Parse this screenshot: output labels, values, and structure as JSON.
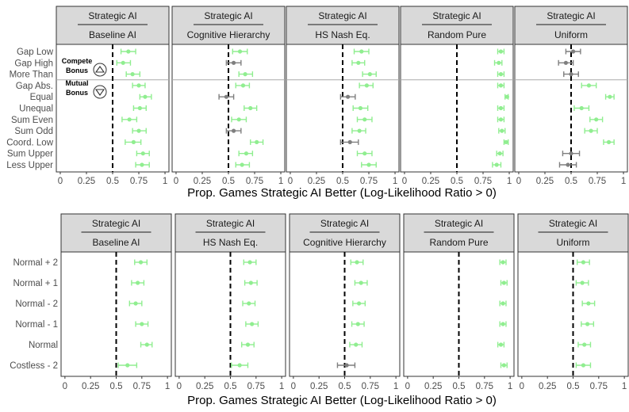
{
  "colors": {
    "significant": "#90ee90",
    "not_significant": "#7f7f7f",
    "reference_line": "#000000",
    "strip": "#d9d9d9"
  },
  "legend": {
    "items": [
      {
        "label": "Compete Bonus",
        "lines": [
          "Compete",
          "Bonus"
        ],
        "icon": "up-triangle-icon"
      },
      {
        "label": "Mutual Bonus",
        "lines": [
          "Mutual",
          "Bonus"
        ],
        "icon": "down-triangle-icon"
      }
    ]
  },
  "chart_data": [
    {
      "type": "scatter",
      "error_bars": true,
      "x_label": "Prop. Games Strategic AI Better (Log-Likelihood Ratio > 0)",
      "x_ticks": [
        "0",
        "0.25",
        "0.5",
        "0.75",
        "1"
      ],
      "xlim": [
        0,
        1
      ],
      "reference_x": 0.5,
      "categories": [
        "Gap Low",
        "Gap High",
        "More Than",
        "Gap Abs.",
        "Equal",
        "Unequal",
        "Sum Even",
        "Sum Odd",
        "Coord. Low",
        "Sum Upper",
        "Less Upper"
      ],
      "group_separator_after": "More Than",
      "facets": [
        {
          "strip_top": "Strategic AI",
          "strip_bottom": "Baseline AI",
          "estimates": [
            0.65,
            0.6,
            0.69,
            0.75,
            0.81,
            0.76,
            0.66,
            0.75,
            0.7,
            0.79,
            0.78
          ],
          "ci_low": [
            0.58,
            0.54,
            0.63,
            0.69,
            0.76,
            0.7,
            0.59,
            0.69,
            0.62,
            0.73,
            0.72
          ],
          "ci_high": [
            0.72,
            0.67,
            0.76,
            0.81,
            0.87,
            0.82,
            0.73,
            0.82,
            0.77,
            0.85,
            0.85
          ],
          "significant": [
            true,
            true,
            true,
            true,
            true,
            true,
            true,
            true,
            true,
            true,
            true
          ]
        },
        {
          "strip_top": "Strategic AI",
          "strip_bottom": "Cognitive Hierarchy",
          "estimates": [
            0.61,
            0.55,
            0.66,
            0.64,
            0.48,
            0.71,
            0.6,
            0.55,
            0.77,
            0.67,
            0.63
          ],
          "ci_low": [
            0.54,
            0.48,
            0.6,
            0.57,
            0.41,
            0.65,
            0.53,
            0.48,
            0.71,
            0.6,
            0.57
          ],
          "ci_high": [
            0.68,
            0.62,
            0.73,
            0.7,
            0.55,
            0.77,
            0.67,
            0.62,
            0.83,
            0.73,
            0.7
          ],
          "significant": [
            true,
            false,
            true,
            true,
            false,
            true,
            true,
            false,
            true,
            true,
            true
          ]
        },
        {
          "strip_top": "Strategic AI",
          "strip_bottom": "HS Nash Eq.",
          "estimates": [
            0.68,
            0.65,
            0.76,
            0.73,
            0.55,
            0.67,
            0.71,
            0.66,
            0.57,
            0.71,
            0.75
          ],
          "ci_low": [
            0.61,
            0.59,
            0.69,
            0.66,
            0.48,
            0.6,
            0.64,
            0.59,
            0.48,
            0.64,
            0.68
          ],
          "ci_high": [
            0.75,
            0.71,
            0.82,
            0.79,
            0.62,
            0.74,
            0.78,
            0.72,
            0.65,
            0.78,
            0.82
          ],
          "significant": [
            true,
            true,
            true,
            true,
            false,
            true,
            true,
            true,
            false,
            true,
            true
          ]
        },
        {
          "strip_top": "Strategic AI",
          "strip_bottom": "Random Pure",
          "estimates": [
            0.92,
            0.9,
            0.92,
            0.92,
            0.98,
            0.92,
            0.92,
            0.93,
            0.97,
            0.91,
            0.88
          ],
          "ci_low": [
            0.89,
            0.86,
            0.89,
            0.89,
            0.96,
            0.89,
            0.89,
            0.9,
            0.95,
            0.88,
            0.84
          ],
          "ci_high": [
            0.95,
            0.93,
            0.95,
            0.95,
            0.99,
            0.95,
            0.95,
            0.96,
            0.99,
            0.94,
            0.92
          ],
          "significant": [
            true,
            true,
            true,
            true,
            true,
            true,
            true,
            true,
            true,
            true,
            true
          ]
        },
        {
          "strip_top": "Strategic AI",
          "strip_bottom": "Uniform",
          "estimates": [
            0.52,
            0.45,
            0.5,
            0.67,
            0.87,
            0.6,
            0.74,
            0.69,
            0.86,
            0.5,
            0.47
          ],
          "ci_low": [
            0.45,
            0.38,
            0.43,
            0.6,
            0.83,
            0.53,
            0.68,
            0.63,
            0.81,
            0.42,
            0.39
          ],
          "ci_high": [
            0.59,
            0.52,
            0.57,
            0.74,
            0.91,
            0.67,
            0.8,
            0.75,
            0.91,
            0.58,
            0.55
          ],
          "significant": [
            false,
            false,
            false,
            true,
            true,
            true,
            true,
            true,
            true,
            false,
            false
          ]
        }
      ]
    },
    {
      "type": "scatter",
      "error_bars": true,
      "x_label": "Prop. Games Strategic AI Better (Log-Likelihood Ratio > 0)",
      "x_ticks": [
        "0",
        "0.25",
        "0.5",
        "0.75",
        "1"
      ],
      "xlim": [
        0,
        1
      ],
      "reference_x": 0.5,
      "categories": [
        "Normal + 2",
        "Normal + 1",
        "Normal - 2",
        "Normal - 1",
        "Normal",
        "Costless - 2"
      ],
      "facets": [
        {
          "strip_top": "Strategic AI",
          "strip_bottom": "Baseline AI",
          "estimates": [
            0.74,
            0.71,
            0.69,
            0.75,
            0.8,
            0.61
          ],
          "ci_low": [
            0.68,
            0.65,
            0.63,
            0.69,
            0.74,
            0.52
          ],
          "ci_high": [
            0.8,
            0.77,
            0.75,
            0.81,
            0.85,
            0.7
          ],
          "significant": [
            true,
            true,
            true,
            true,
            true,
            true
          ]
        },
        {
          "strip_top": "Strategic AI",
          "strip_bottom": "HS Nash Eq.",
          "estimates": [
            0.69,
            0.7,
            0.68,
            0.71,
            0.67,
            0.59
          ],
          "ci_low": [
            0.63,
            0.64,
            0.62,
            0.65,
            0.61,
            0.51
          ],
          "ci_high": [
            0.75,
            0.76,
            0.74,
            0.77,
            0.73,
            0.67
          ],
          "significant": [
            true,
            true,
            true,
            true,
            true,
            true
          ]
        },
        {
          "strip_top": "Strategic AI",
          "strip_bottom": "Cognitive Hierarchy",
          "estimates": [
            0.62,
            0.66,
            0.64,
            0.63,
            0.61,
            0.52
          ],
          "ci_low": [
            0.56,
            0.6,
            0.58,
            0.57,
            0.55,
            0.43
          ],
          "ci_high": [
            0.68,
            0.72,
            0.7,
            0.69,
            0.67,
            0.6
          ],
          "significant": [
            true,
            true,
            true,
            true,
            true,
            false
          ]
        },
        {
          "strip_top": "Strategic AI",
          "strip_bottom": "Random Pure",
          "estimates": [
            0.93,
            0.94,
            0.93,
            0.93,
            0.91,
            0.94
          ],
          "ci_low": [
            0.9,
            0.91,
            0.9,
            0.9,
            0.88,
            0.91
          ],
          "ci_high": [
            0.96,
            0.97,
            0.96,
            0.96,
            0.94,
            0.97
          ],
          "significant": [
            true,
            true,
            true,
            true,
            true,
            true
          ]
        },
        {
          "strip_top": "Strategic AI",
          "strip_bottom": "Uniform",
          "estimates": [
            0.6,
            0.59,
            0.65,
            0.64,
            0.61,
            0.6
          ],
          "ci_low": [
            0.54,
            0.53,
            0.59,
            0.58,
            0.55,
            0.53
          ],
          "ci_high": [
            0.66,
            0.65,
            0.71,
            0.7,
            0.67,
            0.67
          ],
          "significant": [
            true,
            true,
            true,
            true,
            true,
            true
          ]
        }
      ]
    }
  ]
}
